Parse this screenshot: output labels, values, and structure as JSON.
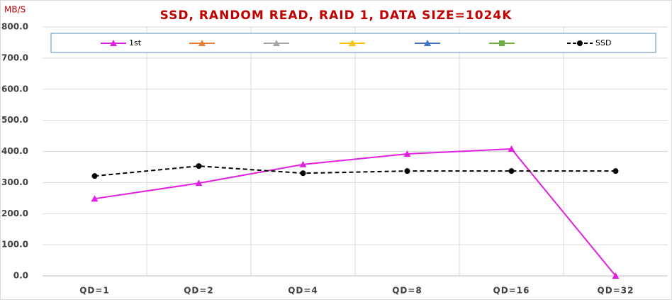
{
  "chart_data": {
    "type": "line",
    "title": "SSD, RANDOM READ, RAID 1, DATA SIZE=1024K",
    "y_label": "MB/S",
    "categories": [
      "QD=1",
      "QD=2",
      "QD=4",
      "QD=8",
      "QD=16",
      "QD=32"
    ],
    "series": [
      {
        "name": "1st",
        "color": "#e020e0",
        "marker": "triangle",
        "dash": false,
        "values": [
          248,
          298,
          358,
          392,
          408,
          0
        ]
      },
      {
        "color": "#ed7d31",
        "marker": "triangle",
        "dash": false,
        "values": [
          null,
          null,
          null,
          null,
          null,
          null
        ]
      },
      {
        "color": "#a5a5a5",
        "marker": "triangle",
        "dash": false,
        "values": [
          null,
          null,
          null,
          null,
          null,
          null
        ]
      },
      {
        "color": "#ffc000",
        "marker": "triangle",
        "dash": false,
        "values": [
          null,
          null,
          null,
          null,
          null,
          null
        ]
      },
      {
        "color": "#4472c4",
        "marker": "triangle",
        "dash": false,
        "values": [
          null,
          null,
          null,
          null,
          null,
          null
        ]
      },
      {
        "color": "#70ad47",
        "marker": "square",
        "dash": false,
        "values": [
          null,
          null,
          null,
          null,
          null,
          null
        ]
      },
      {
        "name": "SSD",
        "color": "#000000",
        "marker": "circle",
        "dash": true,
        "values": [
          321,
          353,
          330,
          337,
          337,
          337
        ]
      }
    ],
    "ylim": [
      0,
      800
    ],
    "yticks": [
      {
        "value": 0,
        "label": "0.0"
      },
      {
        "value": 100,
        "label": "100.0"
      },
      {
        "value": 200,
        "label": "200.0"
      },
      {
        "value": 300,
        "label": "300.0"
      },
      {
        "value": 400,
        "label": "400.0"
      },
      {
        "value": 500,
        "label": "500.0"
      },
      {
        "value": 600,
        "label": "600.0"
      },
      {
        "value": 700,
        "label": "700.0"
      },
      {
        "value": 800,
        "label": "800.0"
      }
    ],
    "grid": true
  }
}
